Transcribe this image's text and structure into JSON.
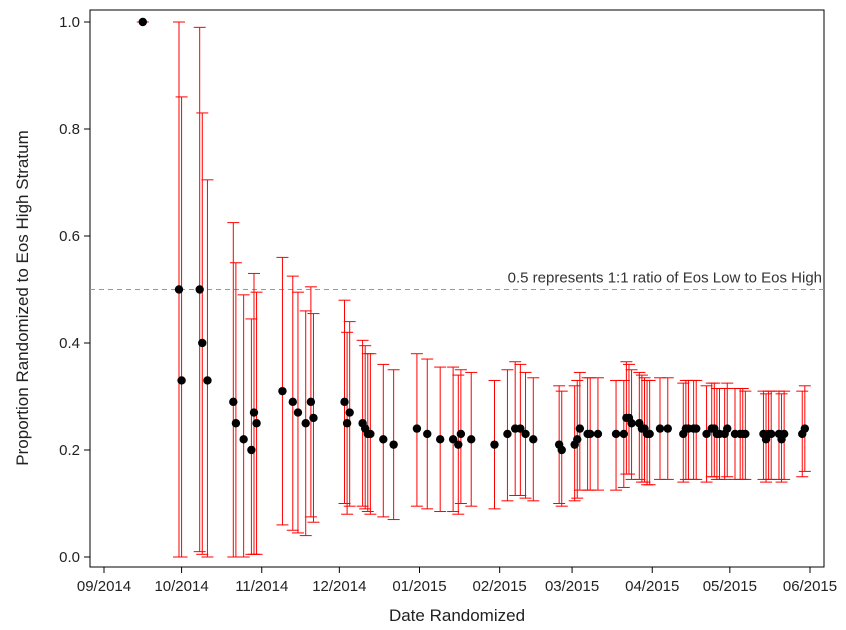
{
  "chart_data": {
    "type": "scatter",
    "title": "",
    "xlabel": "Date Randomized",
    "ylabel": "Proportion Randomized to Eos High Stratum",
    "x_ticks": [
      "09/2014",
      "10/2014",
      "11/2014",
      "12/2014",
      "01/2015",
      "02/2015",
      "03/2015",
      "04/2015",
      "05/2015",
      "06/2015"
    ],
    "y_ticks": [
      "0.0",
      "0.2",
      "0.4",
      "0.6",
      "0.8",
      "1.0"
    ],
    "xlim": [
      "2014-09-01",
      "2015-06-01"
    ],
    "ylim": [
      0,
      1.0
    ],
    "grid": false,
    "reference_line": {
      "y": 0.5,
      "label": "0.5 represents 1:1 ratio of Eos Low to Eos High",
      "color": "#999999"
    },
    "colors": {
      "point": "#000000",
      "error_bar": "#ff0000",
      "axis": "#000000"
    },
    "series": [
      {
        "points": [
          {
            "date": "2014-09-16",
            "y": 1.0,
            "lo": 1.0,
            "hi": 1.0
          },
          {
            "date": "2014-09-30",
            "y": 0.5,
            "lo": 0.0,
            "hi": 1.0
          },
          {
            "date": "2014-10-01",
            "y": 0.33,
            "lo": 0.0,
            "hi": 0.86
          },
          {
            "date": "2014-10-08",
            "y": 0.5,
            "lo": 0.01,
            "hi": 0.99
          },
          {
            "date": "2014-10-09",
            "y": 0.4,
            "lo": 0.005,
            "hi": 0.83
          },
          {
            "date": "2014-10-11",
            "y": 0.33,
            "lo": 0.0,
            "hi": 0.705
          },
          {
            "date": "2014-10-21",
            "y": 0.29,
            "lo": 0.0,
            "hi": 0.625
          },
          {
            "date": "2014-10-22",
            "y": 0.25,
            "lo": 0.0,
            "hi": 0.55
          },
          {
            "date": "2014-10-25",
            "y": 0.22,
            "lo": 0.0,
            "hi": 0.49
          },
          {
            "date": "2014-10-28",
            "y": 0.2,
            "lo": 0.005,
            "hi": 0.445
          },
          {
            "date": "2014-10-29",
            "y": 0.27,
            "lo": 0.005,
            "hi": 0.53
          },
          {
            "date": "2014-10-30",
            "y": 0.25,
            "lo": 0.005,
            "hi": 0.495
          },
          {
            "date": "2014-11-09",
            "y": 0.31,
            "lo": 0.06,
            "hi": 0.56
          },
          {
            "date": "2014-11-13",
            "y": 0.29,
            "lo": 0.05,
            "hi": 0.525
          },
          {
            "date": "2014-11-15",
            "y": 0.27,
            "lo": 0.045,
            "hi": 0.495
          },
          {
            "date": "2014-11-18",
            "y": 0.25,
            "lo": 0.04,
            "hi": 0.46
          },
          {
            "date": "2014-11-20",
            "y": 0.29,
            "lo": 0.075,
            "hi": 0.505
          },
          {
            "date": "2014-11-21",
            "y": 0.26,
            "lo": 0.065,
            "hi": 0.455
          },
          {
            "date": "2014-12-03",
            "y": 0.29,
            "lo": 0.1,
            "hi": 0.48
          },
          {
            "date": "2014-12-04",
            "y": 0.25,
            "lo": 0.08,
            "hi": 0.42
          },
          {
            "date": "2014-12-05",
            "y": 0.27,
            "lo": 0.095,
            "hi": 0.44
          },
          {
            "date": "2014-12-10",
            "y": 0.25,
            "lo": 0.095,
            "hi": 0.405
          },
          {
            "date": "2014-12-11",
            "y": 0.24,
            "lo": 0.09,
            "hi": 0.395
          },
          {
            "date": "2014-12-12",
            "y": 0.23,
            "lo": 0.085,
            "hi": 0.38
          },
          {
            "date": "2014-12-13",
            "y": 0.23,
            "lo": 0.08,
            "hi": 0.38
          },
          {
            "date": "2014-12-18",
            "y": 0.22,
            "lo": 0.075,
            "hi": 0.36
          },
          {
            "date": "2014-12-22",
            "y": 0.21,
            "lo": 0.07,
            "hi": 0.35
          },
          {
            "date": "2014-12-31",
            "y": 0.24,
            "lo": 0.095,
            "hi": 0.38
          },
          {
            "date": "2015-01-04",
            "y": 0.23,
            "lo": 0.09,
            "hi": 0.37
          },
          {
            "date": "2015-01-09",
            "y": 0.22,
            "lo": 0.085,
            "hi": 0.355
          },
          {
            "date": "2015-01-14",
            "y": 0.22,
            "lo": 0.085,
            "hi": 0.355
          },
          {
            "date": "2015-01-16",
            "y": 0.21,
            "lo": 0.08,
            "hi": 0.34
          },
          {
            "date": "2015-01-17",
            "y": 0.23,
            "lo": 0.1,
            "hi": 0.35
          },
          {
            "date": "2015-01-21",
            "y": 0.22,
            "lo": 0.095,
            "hi": 0.345
          },
          {
            "date": "2015-01-30",
            "y": 0.21,
            "lo": 0.09,
            "hi": 0.33
          },
          {
            "date": "2015-02-04",
            "y": 0.23,
            "lo": 0.105,
            "hi": 0.35
          },
          {
            "date": "2015-02-07",
            "y": 0.24,
            "lo": 0.115,
            "hi": 0.365
          },
          {
            "date": "2015-02-09",
            "y": 0.24,
            "lo": 0.115,
            "hi": 0.36
          },
          {
            "date": "2015-02-11",
            "y": 0.23,
            "lo": 0.11,
            "hi": 0.345
          },
          {
            "date": "2015-02-14",
            "y": 0.22,
            "lo": 0.105,
            "hi": 0.335
          },
          {
            "date": "2015-02-24",
            "y": 0.21,
            "lo": 0.1,
            "hi": 0.32
          },
          {
            "date": "2015-02-25",
            "y": 0.2,
            "lo": 0.095,
            "hi": 0.31
          },
          {
            "date": "2015-03-02",
            "y": 0.21,
            "lo": 0.105,
            "hi": 0.32
          },
          {
            "date": "2015-03-03",
            "y": 0.22,
            "lo": 0.11,
            "hi": 0.33
          },
          {
            "date": "2015-03-04",
            "y": 0.24,
            "lo": 0.125,
            "hi": 0.345
          },
          {
            "date": "2015-03-07",
            "y": 0.23,
            "lo": 0.125,
            "hi": 0.335
          },
          {
            "date": "2015-03-08",
            "y": 0.23,
            "lo": 0.125,
            "hi": 0.335
          },
          {
            "date": "2015-03-11",
            "y": 0.23,
            "lo": 0.125,
            "hi": 0.335
          },
          {
            "date": "2015-03-18",
            "y": 0.23,
            "lo": 0.125,
            "hi": 0.33
          },
          {
            "date": "2015-03-21",
            "y": 0.23,
            "lo": 0.13,
            "hi": 0.33
          },
          {
            "date": "2015-03-22",
            "y": 0.26,
            "lo": 0.155,
            "hi": 0.365
          },
          {
            "date": "2015-03-23",
            "y": 0.26,
            "lo": 0.155,
            "hi": 0.36
          },
          {
            "date": "2015-03-24",
            "y": 0.25,
            "lo": 0.145,
            "hi": 0.35
          },
          {
            "date": "2015-03-27",
            "y": 0.25,
            "lo": 0.145,
            "hi": 0.345
          },
          {
            "date": "2015-03-28",
            "y": 0.24,
            "lo": 0.14,
            "hi": 0.34
          },
          {
            "date": "2015-03-29",
            "y": 0.24,
            "lo": 0.14,
            "hi": 0.335
          },
          {
            "date": "2015-03-30",
            "y": 0.23,
            "lo": 0.135,
            "hi": 0.33
          },
          {
            "date": "2015-03-31",
            "y": 0.23,
            "lo": 0.135,
            "hi": 0.33
          },
          {
            "date": "2015-04-04",
            "y": 0.24,
            "lo": 0.145,
            "hi": 0.335
          },
          {
            "date": "2015-04-07",
            "y": 0.24,
            "lo": 0.145,
            "hi": 0.335
          },
          {
            "date": "2015-04-13",
            "y": 0.23,
            "lo": 0.14,
            "hi": 0.325
          },
          {
            "date": "2015-04-14",
            "y": 0.24,
            "lo": 0.145,
            "hi": 0.33
          },
          {
            "date": "2015-04-15",
            "y": 0.24,
            "lo": 0.145,
            "hi": 0.33
          },
          {
            "date": "2015-04-17",
            "y": 0.24,
            "lo": 0.145,
            "hi": 0.33
          },
          {
            "date": "2015-04-18",
            "y": 0.24,
            "lo": 0.145,
            "hi": 0.33
          },
          {
            "date": "2015-04-22",
            "y": 0.23,
            "lo": 0.14,
            "hi": 0.32
          },
          {
            "date": "2015-04-24",
            "y": 0.24,
            "lo": 0.15,
            "hi": 0.325
          },
          {
            "date": "2015-04-25",
            "y": 0.24,
            "lo": 0.15,
            "hi": 0.325
          },
          {
            "date": "2015-04-26",
            "y": 0.23,
            "lo": 0.145,
            "hi": 0.315
          },
          {
            "date": "2015-04-27",
            "y": 0.23,
            "lo": 0.145,
            "hi": 0.315
          },
          {
            "date": "2015-04-29",
            "y": 0.23,
            "lo": 0.145,
            "hi": 0.315
          },
          {
            "date": "2015-04-30",
            "y": 0.24,
            "lo": 0.15,
            "hi": 0.325
          },
          {
            "date": "2015-05-03",
            "y": 0.23,
            "lo": 0.145,
            "hi": 0.315
          },
          {
            "date": "2015-05-05",
            "y": 0.23,
            "lo": 0.145,
            "hi": 0.315
          },
          {
            "date": "2015-05-06",
            "y": 0.23,
            "lo": 0.145,
            "hi": 0.315
          },
          {
            "date": "2015-05-07",
            "y": 0.23,
            "lo": 0.145,
            "hi": 0.31
          },
          {
            "date": "2015-05-14",
            "y": 0.23,
            "lo": 0.145,
            "hi": 0.31
          },
          {
            "date": "2015-05-15",
            "y": 0.22,
            "lo": 0.14,
            "hi": 0.305
          },
          {
            "date": "2015-05-16",
            "y": 0.23,
            "lo": 0.145,
            "hi": 0.31
          },
          {
            "date": "2015-05-17",
            "y": 0.23,
            "lo": 0.145,
            "hi": 0.31
          },
          {
            "date": "2015-05-20",
            "y": 0.23,
            "lo": 0.145,
            "hi": 0.31
          },
          {
            "date": "2015-05-21",
            "y": 0.22,
            "lo": 0.14,
            "hi": 0.305
          },
          {
            "date": "2015-05-22",
            "y": 0.23,
            "lo": 0.145,
            "hi": 0.31
          },
          {
            "date": "2015-05-29",
            "y": 0.23,
            "lo": 0.15,
            "hi": 0.31
          },
          {
            "date": "2015-05-30",
            "y": 0.24,
            "lo": 0.16,
            "hi": 0.32
          }
        ]
      }
    ]
  }
}
